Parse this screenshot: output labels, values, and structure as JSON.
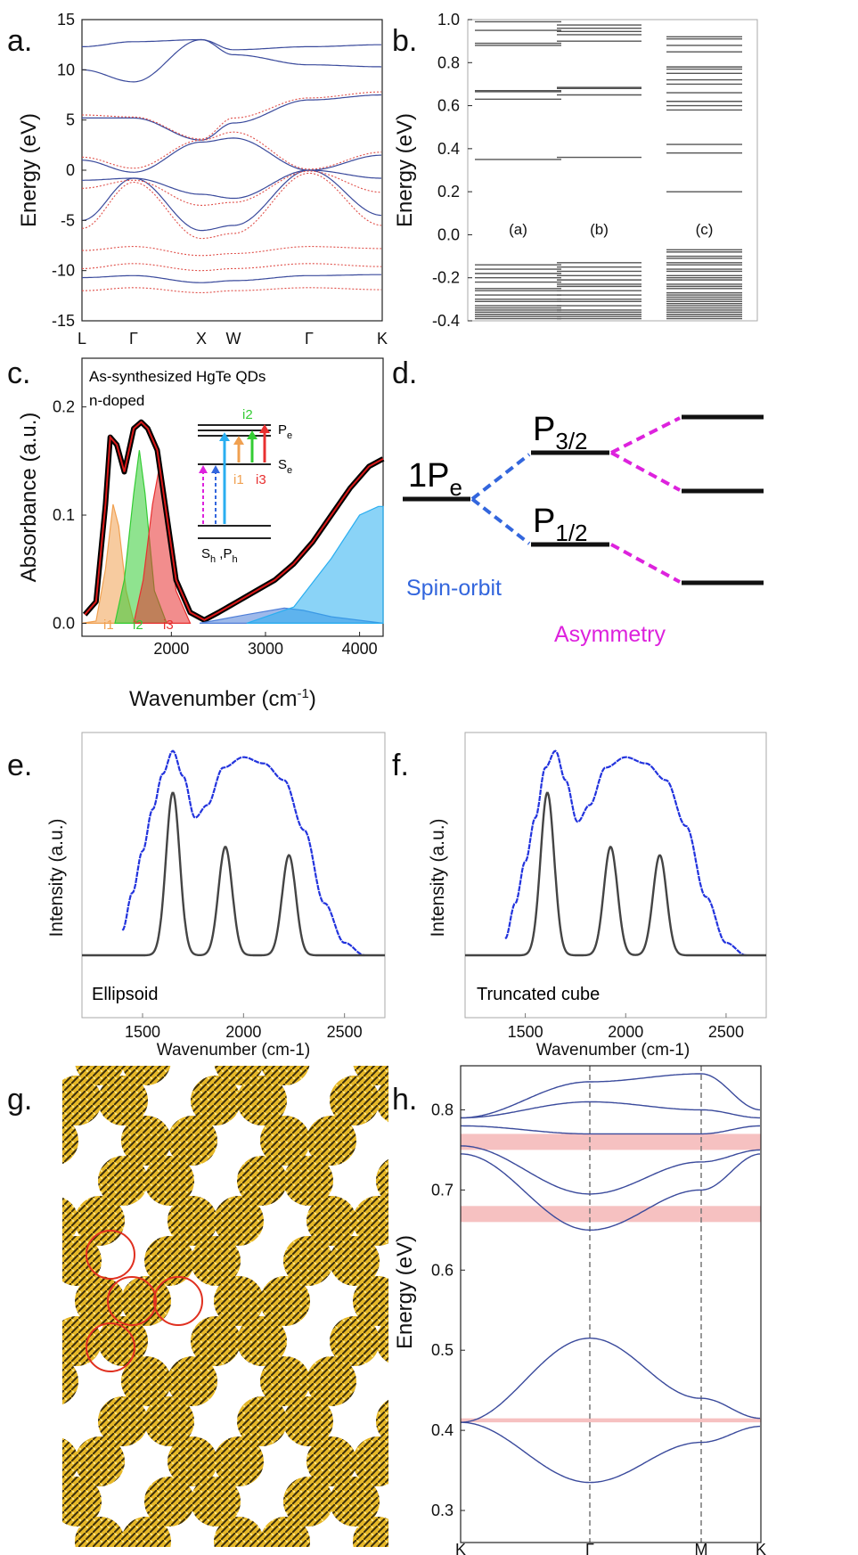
{
  "figure": {
    "panel_labels": [
      "a.",
      "b.",
      "c.",
      "d.",
      "e.",
      "f.",
      "g.",
      "h."
    ]
  },
  "colors": {
    "band_blue": "#3a4a9c",
    "band_red": "#e0504a",
    "level_gray": "#555555",
    "orange": "#f0a050",
    "green": "#33cc33",
    "red": "#e83030",
    "cyan": "#2aaef0",
    "magenta": "#dd22dd",
    "blue_dash": "#3366dd",
    "spectrum_blue": "#2233dd",
    "gold": "#e6b828",
    "pink_band": "#f4b6b6"
  },
  "chart_data": [
    {
      "panel": "a.",
      "type": "line",
      "ylabel": "Energy (eV)",
      "yticks": [
        "15",
        "10",
        "5",
        "0",
        "-5",
        "-10",
        "-15"
      ],
      "ylim": [
        -15,
        15
      ],
      "xticks": [
        "L",
        "Γ",
        "X",
        "W",
        "Γ",
        "K"
      ],
      "series": [
        {
          "style": "solid blue",
          "values": [
            {
              "y_at_points": [
                12.3,
                12.8,
                13.0,
                12.0,
                12.3,
                12.5
              ]
            },
            {
              "y_at_points": [
                10.0,
                8.8,
                13.0,
                11.5,
                10.5,
                10.3
              ]
            },
            {
              "y_at_points": [
                5.2,
                5.2,
                3.0,
                4.7,
                7.0,
                7.5
              ]
            },
            {
              "y_at_points": [
                1.0,
                -0.2,
                2.8,
                3.2,
                0.0,
                1.5
              ]
            },
            {
              "y_at_points": [
                -1.0,
                -0.8,
                -2.4,
                -2.8,
                0.0,
                -0.8
              ]
            },
            {
              "y_at_points": [
                -5.0,
                -0.8,
                -6.0,
                -5.5,
                0.0,
                -4.5
              ]
            },
            {
              "y_at_points": [
                -10.7,
                -10.5,
                -11.2,
                -11.0,
                -10.5,
                -10.4
              ]
            }
          ]
        },
        {
          "style": "dotted red",
          "values": [
            {
              "y_at_points": [
                5.5,
                5.3,
                3.1,
                5.2,
                7.2,
                7.8
              ]
            },
            {
              "y_at_points": [
                1.3,
                0.2,
                3.0,
                3.8,
                0.1,
                1.8
              ]
            },
            {
              "y_at_points": [
                -1.8,
                -1.0,
                -3.5,
                -3.2,
                -0.1,
                -2.2
              ]
            },
            {
              "y_at_points": [
                -5.8,
                -1.2,
                -6.8,
                -6.3,
                -0.3,
                -5.5
              ]
            },
            {
              "y_at_points": [
                -8.0,
                -7.6,
                -8.5,
                -8.3,
                -7.6,
                -7.8
              ]
            },
            {
              "y_at_points": [
                -9.8,
                -9.3,
                -10.0,
                -9.8,
                -9.3,
                -9.6
              ]
            },
            {
              "y_at_points": [
                -12.0,
                -11.7,
                -12.2,
                -12.0,
                -11.7,
                -11.9
              ]
            }
          ]
        }
      ]
    },
    {
      "panel": "b.",
      "type": "levels",
      "ylabel": "Energy (eV)",
      "yticks": [
        "1.0",
        "0.8",
        "0.6",
        "0.4",
        "0.2",
        "0.0",
        "-0.2",
        "-0.4"
      ],
      "ylim": [
        -0.4,
        1.0
      ],
      "columns": [
        {
          "label": "(a)",
          "levels": [
            0.99,
            0.95,
            0.89,
            0.88,
            0.67,
            0.665,
            0.63,
            0.35,
            -0.14,
            -0.16,
            -0.18,
            -0.2,
            -0.22,
            -0.25,
            -0.26,
            -0.28,
            -0.3,
            -0.31,
            -0.33,
            -0.34,
            -0.35,
            -0.36,
            -0.37,
            -0.38,
            -0.39
          ]
        },
        {
          "label": "(b)",
          "levels": [
            0.975,
            0.96,
            0.945,
            0.93,
            0.9,
            0.685,
            0.68,
            0.65,
            0.36,
            -0.13,
            -0.15,
            -0.17,
            -0.19,
            -0.21,
            -0.23,
            -0.24,
            -0.26,
            -0.28,
            -0.3,
            -0.31,
            -0.33,
            -0.35,
            -0.36,
            -0.37,
            -0.38,
            -0.39
          ]
        },
        {
          "label": "(c)",
          "levels": [
            0.92,
            0.91,
            0.88,
            0.85,
            0.78,
            0.77,
            0.75,
            0.72,
            0.7,
            0.66,
            0.62,
            0.6,
            0.58,
            0.42,
            0.38,
            0.2,
            -0.07,
            -0.08,
            -0.1,
            -0.11,
            -0.13,
            -0.14,
            -0.16,
            -0.17,
            -0.19,
            -0.2,
            -0.21,
            -0.23,
            -0.24,
            -0.25,
            -0.27,
            -0.28,
            -0.29,
            -0.3,
            -0.31,
            -0.32,
            -0.33,
            -0.34,
            -0.35,
            -0.36,
            -0.37,
            -0.38,
            -0.39
          ]
        }
      ]
    },
    {
      "panel": "c.",
      "type": "line",
      "title": "As-synthesized HgTe QDs",
      "subtitle": "n-doped",
      "xlabel": "Wavenumber (cm",
      "xlabel_sup": "-1",
      "xlabel_tail": ")",
      "ylabel": "Absorbance (a.u.)",
      "xticks": [
        "2000",
        "3000",
        "4000"
      ],
      "yticks": [
        "0.0",
        "0.1",
        "0.2"
      ],
      "xlim": [
        1050,
        4250
      ],
      "ylim": [
        -0.012,
        0.245
      ],
      "series": [
        {
          "name": "i1",
          "values": [
            [
              1050,
              0.0
            ],
            [
              1200,
              0.002
            ],
            [
              1300,
              0.05
            ],
            [
              1380,
              0.11
            ],
            [
              1440,
              0.09
            ],
            [
              1520,
              0.03
            ],
            [
              1600,
              0.002
            ],
            [
              1700,
              0.0
            ]
          ]
        },
        {
          "name": "i2",
          "values": [
            [
              1400,
              0.0
            ],
            [
              1500,
              0.04
            ],
            [
              1600,
              0.12
            ],
            [
              1660,
              0.16
            ],
            [
              1720,
              0.12
            ],
            [
              1820,
              0.03
            ],
            [
              1950,
              0.0
            ]
          ]
        },
        {
          "name": "i3",
          "values": [
            [
              1600,
              0.0
            ],
            [
              1700,
              0.04
            ],
            [
              1800,
              0.11
            ],
            [
              1880,
              0.148
            ],
            [
              1950,
              0.1
            ],
            [
              2050,
              0.03
            ],
            [
              2200,
              0.0
            ]
          ]
        },
        {
          "name": "data",
          "values": [
            [
              1080,
              0.008
            ],
            [
              1200,
              0.02
            ],
            [
              1300,
              0.11
            ],
            [
              1350,
              0.172
            ],
            [
              1420,
              0.165
            ],
            [
              1500,
              0.14
            ],
            [
              1550,
              0.16
            ],
            [
              1600,
              0.18
            ],
            [
              1680,
              0.186
            ],
            [
              1750,
              0.18
            ],
            [
              1850,
              0.16
            ],
            [
              1950,
              0.1
            ],
            [
              2050,
              0.04
            ],
            [
              2200,
              0.01
            ],
            [
              2350,
              0.003
            ],
            [
              2500,
              0.01
            ],
            [
              2700,
              0.02
            ],
            [
              2900,
              0.03
            ],
            [
              3100,
              0.04
            ],
            [
              3300,
              0.055
            ],
            [
              3500,
              0.075
            ],
            [
              3700,
              0.1
            ],
            [
              3900,
              0.125
            ],
            [
              4100,
              0.145
            ],
            [
              4250,
              0.152
            ]
          ]
        },
        {
          "name": "fit-high-1",
          "values": [
            [
              2300,
              0.0
            ],
            [
              2800,
              0.008
            ],
            [
              3200,
              0.014
            ],
            [
              3400,
              0.012
            ],
            [
              3700,
              0.006
            ],
            [
              4250,
              0.0
            ]
          ]
        },
        {
          "name": "fit-high-2",
          "values": [
            [
              2800,
              0.0
            ],
            [
              3300,
              0.015
            ],
            [
              3700,
              0.06
            ],
            [
              4000,
              0.1
            ],
            [
              4200,
              0.108
            ],
            [
              4250,
              0.108
            ]
          ]
        }
      ],
      "annotations": {
        "levels": [
          "P",
          "e",
          "S",
          "e",
          "S",
          "h",
          " ,P",
          "h"
        ],
        "transitions": [
          "i1",
          "i2",
          "i3"
        ]
      }
    },
    {
      "panel": "e.",
      "type": "line",
      "xlabel": "Wavenumber (cm-1)",
      "ylabel": "Intensity (a.u.)",
      "xticks": [
        "1500",
        "2000",
        "2500"
      ],
      "xlim": [
        1200,
        2700
      ],
      "legend": "Ellipsoid",
      "series": [
        {
          "name": "experiment",
          "values": [
            [
              1400,
              0.12
            ],
            [
              1450,
              0.3
            ],
            [
              1500,
              0.5
            ],
            [
              1550,
              0.7
            ],
            [
              1600,
              0.87
            ],
            [
              1650,
              0.98
            ],
            [
              1700,
              0.86
            ],
            [
              1760,
              0.66
            ],
            [
              1820,
              0.72
            ],
            [
              1900,
              0.9
            ],
            [
              2000,
              0.95
            ],
            [
              2100,
              0.92
            ],
            [
              2200,
              0.84
            ],
            [
              2300,
              0.6
            ],
            [
              2400,
              0.25
            ],
            [
              2500,
              0.06
            ],
            [
              2600,
              0.0
            ]
          ]
        },
        {
          "name": "calculation",
          "peaks": [
            {
              "x": 1650,
              "h": 0.78
            },
            {
              "x": 1910,
              "h": 0.52
            },
            {
              "x": 2225,
              "h": 0.48
            }
          ]
        }
      ]
    },
    {
      "panel": "f.",
      "type": "line",
      "xlabel": "Wavenumber (cm-1)",
      "ylabel": "Intensity (a.u.)",
      "xticks": [
        "1500",
        "2000",
        "2500"
      ],
      "xlim": [
        1200,
        2700
      ],
      "legend": "Truncated cube",
      "series": [
        {
          "name": "experiment",
          "values": [
            [
              1400,
              0.08
            ],
            [
              1450,
              0.25
            ],
            [
              1500,
              0.45
            ],
            [
              1550,
              0.66
            ],
            [
              1600,
              0.9
            ],
            [
              1650,
              0.98
            ],
            [
              1700,
              0.84
            ],
            [
              1760,
              0.64
            ],
            [
              1820,
              0.72
            ],
            [
              1900,
              0.9
            ],
            [
              2000,
              0.95
            ],
            [
              2100,
              0.92
            ],
            [
              2200,
              0.84
            ],
            [
              2300,
              0.62
            ],
            [
              2400,
              0.28
            ],
            [
              2500,
              0.06
            ],
            [
              2600,
              0.0
            ]
          ]
        },
        {
          "name": "calculation",
          "peaks": [
            {
              "x": 1610,
              "h": 0.78
            },
            {
              "x": 1925,
              "h": 0.52
            },
            {
              "x": 2170,
              "h": 0.48
            }
          ]
        }
      ]
    },
    {
      "panel": "h.",
      "type": "line",
      "ylabel": "Energy (eV)",
      "yticks": [
        "0.8",
        "0.7",
        "0.6",
        "0.5",
        "0.4",
        "0.3"
      ],
      "ylim": [
        0.26,
        0.855
      ],
      "xticks": [
        "K",
        "Γ",
        "M",
        "K"
      ],
      "series": [
        {
          "name": "valence-upper",
          "y_at_points": [
            0.41,
            0.515,
            0.44,
            0.415
          ]
        },
        {
          "name": "valence-lower",
          "y_at_points": [
            0.41,
            0.335,
            0.385,
            0.405
          ]
        },
        {
          "name": "conduction-1",
          "y_at_points": [
            0.745,
            0.65,
            0.7,
            0.745
          ]
        },
        {
          "name": "conduction-2",
          "y_at_points": [
            0.755,
            0.695,
            0.735,
            0.75
          ]
        },
        {
          "name": "conduction-3",
          "y_at_points": [
            0.78,
            0.77,
            0.77,
            0.78
          ]
        },
        {
          "name": "conduction-4",
          "y_at_points": [
            0.79,
            0.81,
            0.8,
            0.79
          ]
        },
        {
          "name": "conduction-5",
          "y_at_points": [
            0.79,
            0.835,
            0.845,
            0.8
          ]
        }
      ],
      "highlight_bands": [
        [
          0.66,
          0.68
        ],
        [
          0.75,
          0.77
        ],
        [
          0.41,
          0.415
        ]
      ]
    }
  ],
  "panel_d": {
    "levels": {
      "left": "1P",
      "left_sub": "e",
      "upper": "P",
      "upper_sub": "3/2",
      "lower": "P",
      "lower_sub": "1/2"
    },
    "labels": {
      "spin_orbit": "Spin-orbit",
      "asymmetry": "Asymmetry"
    }
  },
  "panel_g": {
    "structure": "honeycomb superlattice"
  }
}
